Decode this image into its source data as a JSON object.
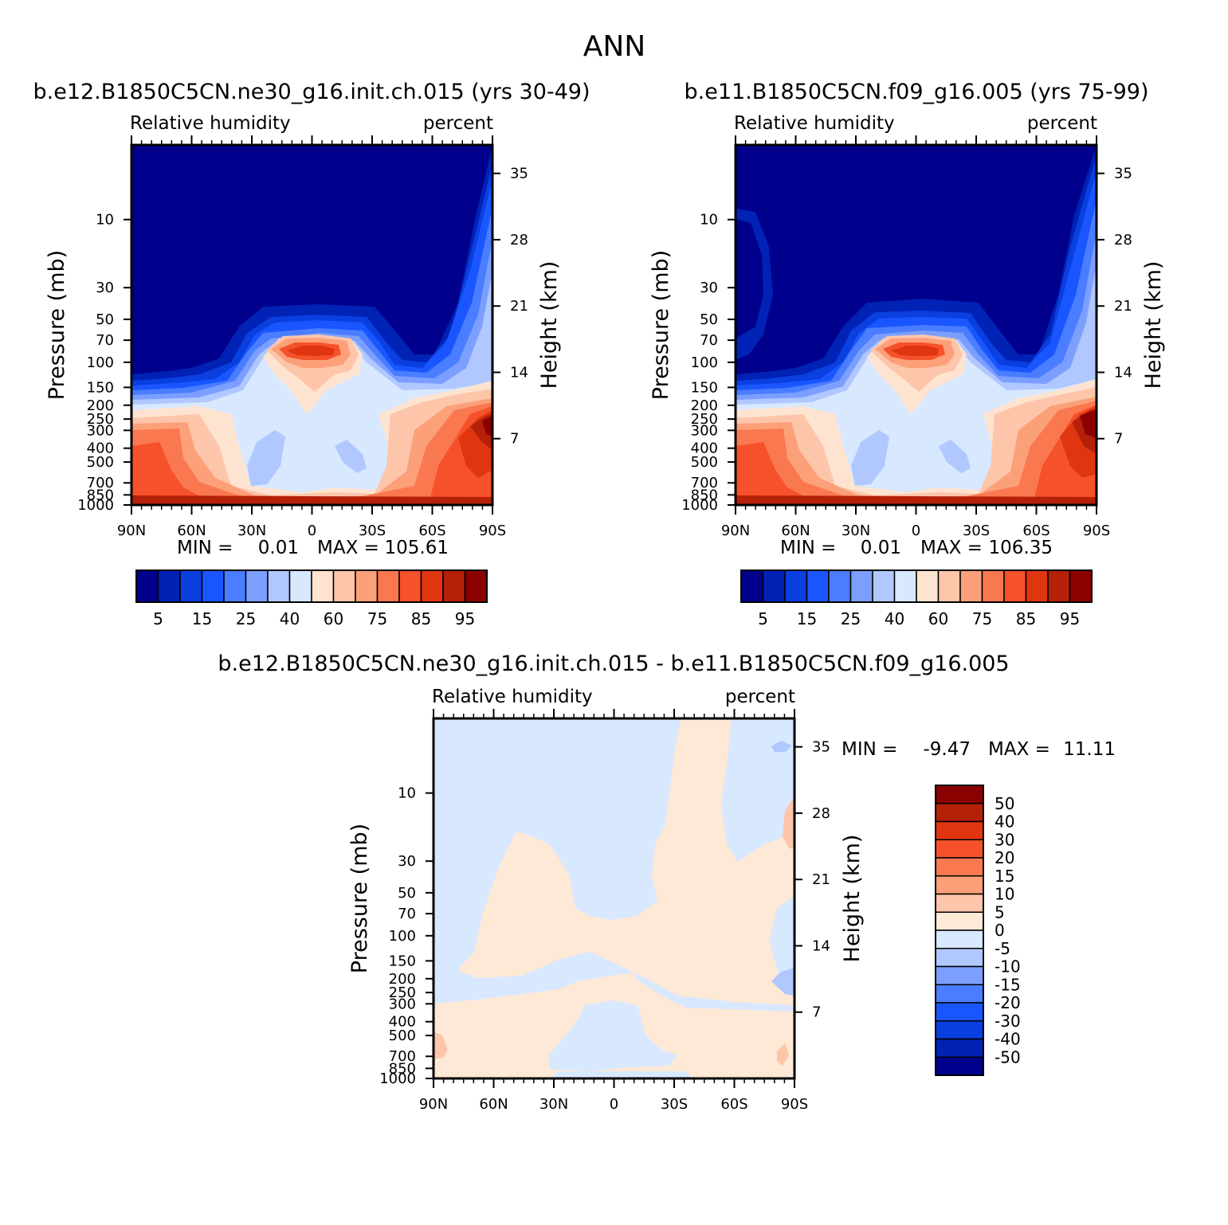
{
  "figure_title": "ANN",
  "colors": {
    "abs": [
      "#00008c",
      "#0022b5",
      "#0a3fe0",
      "#1a56ff",
      "#4a7dff",
      "#7c9fff",
      "#b0c8ff",
      "#d8e8ff",
      "#fee3d0",
      "#fdc5aa",
      "#fca07a",
      "#fa7850",
      "#f5512a",
      "#e03610",
      "#b52008",
      "#8b0000"
    ],
    "diff": [
      "#00008c",
      "#0022b5",
      "#0a3fe0",
      "#1a56ff",
      "#4a7dff",
      "#7c9fff",
      "#b0c8ff",
      "#d8e8ff",
      "#fee8d6",
      "#fdc5aa",
      "#fca07a",
      "#fa7850",
      "#f5512a",
      "#e03610",
      "#b52008",
      "#8b0000"
    ]
  },
  "chart_data": [
    {
      "type": "heatmap",
      "panel": "model1",
      "title": "b.e12.B1850C5CN.ne30_g16.init.ch.015 (yrs 30-49)",
      "variable": "Relative humidity",
      "units": "percent",
      "xlabel": "",
      "ylabel": "Pressure (mb)",
      "y2label": "Height (km)",
      "x_ticks": [
        "90N",
        "60N",
        "30N",
        "0",
        "30S",
        "60S",
        "90S"
      ],
      "y_ticks": [
        "10",
        "30",
        "50",
        "70",
        "100",
        "150",
        "200",
        "250",
        "300",
        "400",
        "500",
        "700",
        "850",
        "1000"
      ],
      "y2_ticks": [
        "35",
        "28",
        "21",
        "14",
        "7"
      ],
      "min_label": "MIN =",
      "min_value": "0.01",
      "max_label": "MAX =",
      "max_value": "105.61",
      "colorbar_labels": [
        "5",
        "15",
        "25",
        "40",
        "60",
        "75",
        "85",
        "95"
      ],
      "levels": [
        5,
        10,
        15,
        20,
        25,
        30,
        40,
        50,
        60,
        70,
        75,
        80,
        85,
        90,
        95
      ]
    },
    {
      "type": "heatmap",
      "panel": "model2",
      "title": "b.e11.B1850C5CN.f09_g16.005 (yrs 75-99)",
      "variable": "Relative humidity",
      "units": "percent",
      "ylabel": "Pressure (mb)",
      "y2label": "Height (km)",
      "x_ticks": [
        "90N",
        "60N",
        "30N",
        "0",
        "30S",
        "60S",
        "90S"
      ],
      "y_ticks": [
        "10",
        "30",
        "50",
        "70",
        "100",
        "150",
        "200",
        "250",
        "300",
        "400",
        "500",
        "700",
        "850",
        "1000"
      ],
      "y2_ticks": [
        "35",
        "28",
        "21",
        "14",
        "7"
      ],
      "min_label": "MIN =",
      "min_value": "0.01",
      "max_label": "MAX =",
      "max_value": "106.35",
      "colorbar_labels": [
        "5",
        "15",
        "25",
        "40",
        "60",
        "75",
        "85",
        "95"
      ],
      "levels": [
        5,
        10,
        15,
        20,
        25,
        30,
        40,
        50,
        60,
        70,
        75,
        80,
        85,
        90,
        95
      ]
    },
    {
      "type": "heatmap",
      "panel": "difference",
      "title": "b.e12.B1850C5CN.ne30_g16.init.ch.015 - b.e11.B1850C5CN.f09_g16.005",
      "variable": "Relative humidity",
      "units": "percent",
      "ylabel": "Pressure (mb)",
      "y2label": "Height (km)",
      "x_ticks": [
        "90N",
        "60N",
        "30N",
        "0",
        "30S",
        "60S",
        "90S"
      ],
      "y_ticks": [
        "10",
        "30",
        "50",
        "70",
        "100",
        "150",
        "200",
        "250",
        "300",
        "400",
        "500",
        "700",
        "850",
        "1000"
      ],
      "y2_ticks": [
        "35",
        "28",
        "21",
        "14",
        "7"
      ],
      "min_label": "MIN =",
      "min_value": "-9.47",
      "max_label": "MAX =",
      "max_value": "11.11",
      "colorbar_labels": [
        "50",
        "40",
        "30",
        "20",
        "15",
        "10",
        "5",
        "0",
        "-5",
        "-10",
        "-15",
        "-20",
        "-30",
        "-40",
        "-50"
      ],
      "levels": [
        -50,
        -40,
        -30,
        -20,
        -15,
        -10,
        -5,
        0,
        5,
        10,
        15,
        20,
        30,
        40,
        50
      ]
    }
  ]
}
